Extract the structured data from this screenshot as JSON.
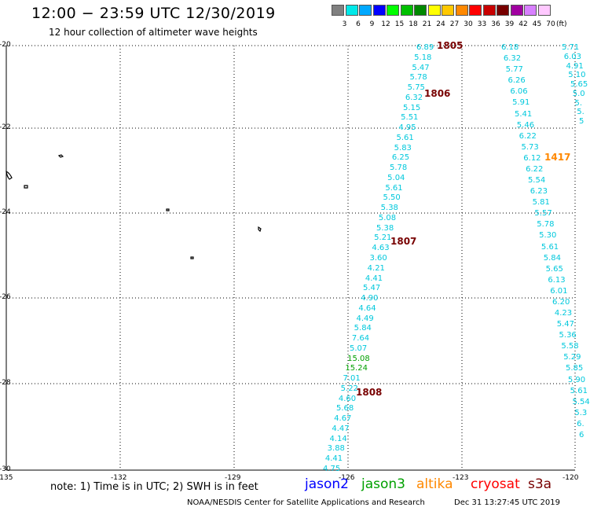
{
  "title": "12:00 − 23:59 UTC 12/30/2019",
  "subtitle": "12 hour collection of altimeter wave heights",
  "legend": {
    "colors": [
      "#808080",
      "#00e8e8",
      "#00a8ff",
      "#0000ff",
      "#00ff00",
      "#00c000",
      "#008800",
      "#ffff00",
      "#ffc800",
      "#ff8800",
      "#ff0000",
      "#c80000",
      "#780000",
      "#a000a0",
      "#d880ff",
      "#ffc8ff"
    ],
    "labels": [
      "3",
      "6",
      "9",
      "12",
      "15",
      "18",
      "21",
      "24",
      "27",
      "30",
      "33",
      "36",
      "39",
      "42",
      "45",
      "70"
    ],
    "unit": "(ft)"
  },
  "axes": {
    "lat_labels": [
      "-20",
      "-22",
      "-24",
      "-26",
      "-28",
      "-30"
    ],
    "lon_labels": [
      "-135",
      "-132",
      "-129",
      "-126",
      "-123",
      "-120"
    ]
  },
  "tracks": [
    {
      "name": "track-a",
      "color": "#00c8dc",
      "values": [
        "6.89",
        "5.18",
        "5.47",
        "5.78",
        "5.75",
        "6.32",
        "5.15",
        "5.51",
        "4.95",
        "5.61",
        "5.83",
        "6.25",
        "5.78",
        "5.04",
        "5.61",
        "5.50",
        "5.38",
        "5.08",
        "5.38",
        "5.21",
        "4.63",
        "3.60",
        "4.21",
        "4.41",
        "5.47",
        "4.90",
        "4.64",
        "4.49",
        "5.84",
        "7.64",
        "5.07",
        "15.08",
        "15.24",
        "7.01",
        "5.22",
        "4.60",
        "5.68",
        "4.67",
        "4.47",
        "4.14",
        "3.88",
        "4.41",
        "4.75"
      ]
    },
    {
      "name": "track-b",
      "color": "#00c8dc",
      "values": [
        "6.18",
        "6.32",
        "5.77",
        "6.26",
        "6.06",
        "5.91",
        "5.41",
        "5.46",
        "6.22",
        "5.73",
        "6.12",
        "6.22",
        "5.54",
        "6.23",
        "5.81",
        "5.57",
        "5.78",
        "5.30",
        "5.61",
        "5.84",
        "5.65",
        "6.13",
        "6.01",
        "6.20",
        "4.23",
        "5.47",
        "5.36",
        "5.58",
        "5.29",
        "5.85",
        "5.90",
        "5.61",
        "5.54",
        "5.3",
        "6.",
        "6"
      ]
    },
    {
      "name": "track-c",
      "color": "#00c8dc",
      "values": [
        "5.71",
        "6.03",
        "4.91",
        "5.10",
        "5.65",
        "5.0",
        "5.",
        "5.",
        "5"
      ]
    }
  ],
  "passes": [
    {
      "time": "1805",
      "color": "#780000"
    },
    {
      "time": "1806",
      "color": "#780000"
    },
    {
      "time": "1807",
      "color": "#780000"
    },
    {
      "time": "1808",
      "color": "#780000"
    },
    {
      "time": "1417",
      "color": "#ff8800"
    }
  ],
  "footer": {
    "note": "note: 1) Time is in UTC; 2) SWH is in feet",
    "satellites": [
      {
        "name": "jason2",
        "color": "#0000ff"
      },
      {
        "name": "jason3",
        "color": "#00a000"
      },
      {
        "name": "altika",
        "color": "#ff8800"
      },
      {
        "name": "cryosat",
        "color": "#ff0000"
      },
      {
        "name": "s3a",
        "color": "#780000"
      }
    ],
    "credit": "NOAA/NESDIS Center for Satellite Applications and Research",
    "timestamp": "Dec 31 13:27:45 UTC 2019"
  }
}
